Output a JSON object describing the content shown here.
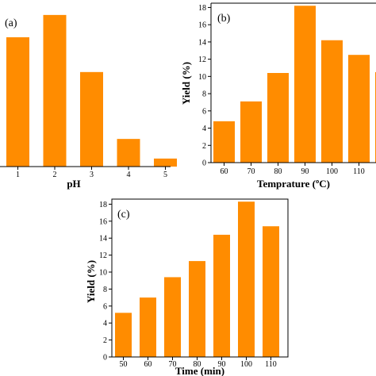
{
  "bar_color": "#FF8C00",
  "chart_data": [
    {
      "type": "bar",
      "panel_label": "(a)",
      "categories": [
        "1",
        "2",
        "3",
        "4",
        "5"
      ],
      "values": [
        14.5,
        17.0,
        10.6,
        3.1,
        0.9
      ],
      "xlabel": "pH",
      "ylabel": "",
      "ylim": [
        0,
        18.5
      ],
      "yticks": [],
      "grid": false,
      "legend": "none"
    },
    {
      "type": "bar",
      "panel_label": "(b)",
      "categories": [
        "60",
        "70",
        "80",
        "90",
        "100",
        "110",
        ""
      ],
      "values": [
        4.8,
        7.1,
        10.4,
        18.2,
        14.2,
        12.5,
        10.5
      ],
      "xlabel": "Temprature (ºC)",
      "ylabel": "Yield (%)",
      "ylim": [
        0,
        18.5
      ],
      "yticks": [
        "0",
        "2",
        "4",
        "6",
        "8",
        "10",
        "12",
        "14",
        "16",
        "18"
      ],
      "grid": false,
      "legend": "none"
    },
    {
      "type": "bar",
      "panel_label": "(c)",
      "categories": [
        "50",
        "60",
        "70",
        "80",
        "90",
        "100",
        "110"
      ],
      "values": [
        5.2,
        7.0,
        9.4,
        11.3,
        14.4,
        18.3,
        15.4
      ],
      "xlabel": "Time (min)",
      "ylabel": "Yield (%)",
      "ylim": [
        0,
        18.6
      ],
      "yticks": [
        "0",
        "2",
        "4",
        "6",
        "8",
        "10",
        "12",
        "14",
        "16",
        "18"
      ],
      "grid": false,
      "legend": "none"
    }
  ]
}
